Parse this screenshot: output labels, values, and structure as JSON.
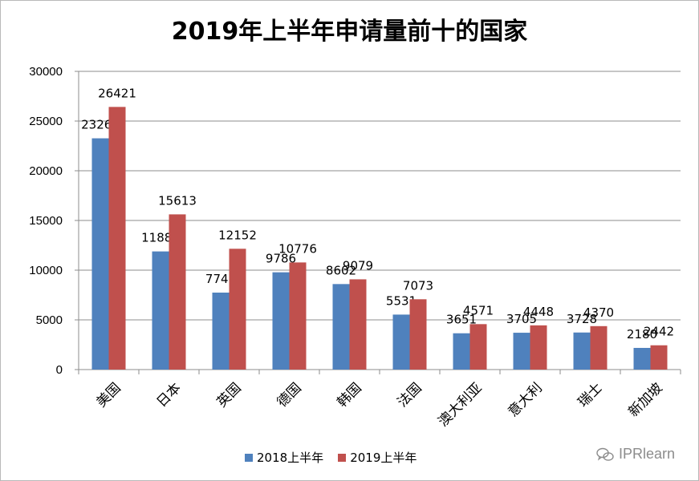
{
  "chart_data": {
    "type": "bar",
    "title": "2019年上半年申请量前十的国家",
    "categories": [
      "美国",
      "日本",
      "英国",
      "德国",
      "韩国",
      "法国",
      "澳大利亚",
      "意大利",
      "瑞士",
      "新加坡"
    ],
    "series": [
      {
        "name": "2018上半年",
        "color": "#4f81bd",
        "values": [
          23263,
          11885,
          7743,
          9786,
          8602,
          5531,
          3651,
          3705,
          3728,
          2180
        ]
      },
      {
        "name": "2019上半年",
        "color": "#c0504d",
        "values": [
          26421,
          15613,
          12152,
          10776,
          9079,
          7073,
          4571,
          4448,
          4370,
          2442
        ]
      }
    ],
    "ylim": [
      0,
      30000
    ],
    "yticks": [
      0,
      5000,
      10000,
      15000,
      20000,
      25000,
      30000
    ],
    "grid": true,
    "legend_position": "bottom"
  },
  "watermark": {
    "text": "IPRlearn",
    "icon": "wechat-icon"
  }
}
